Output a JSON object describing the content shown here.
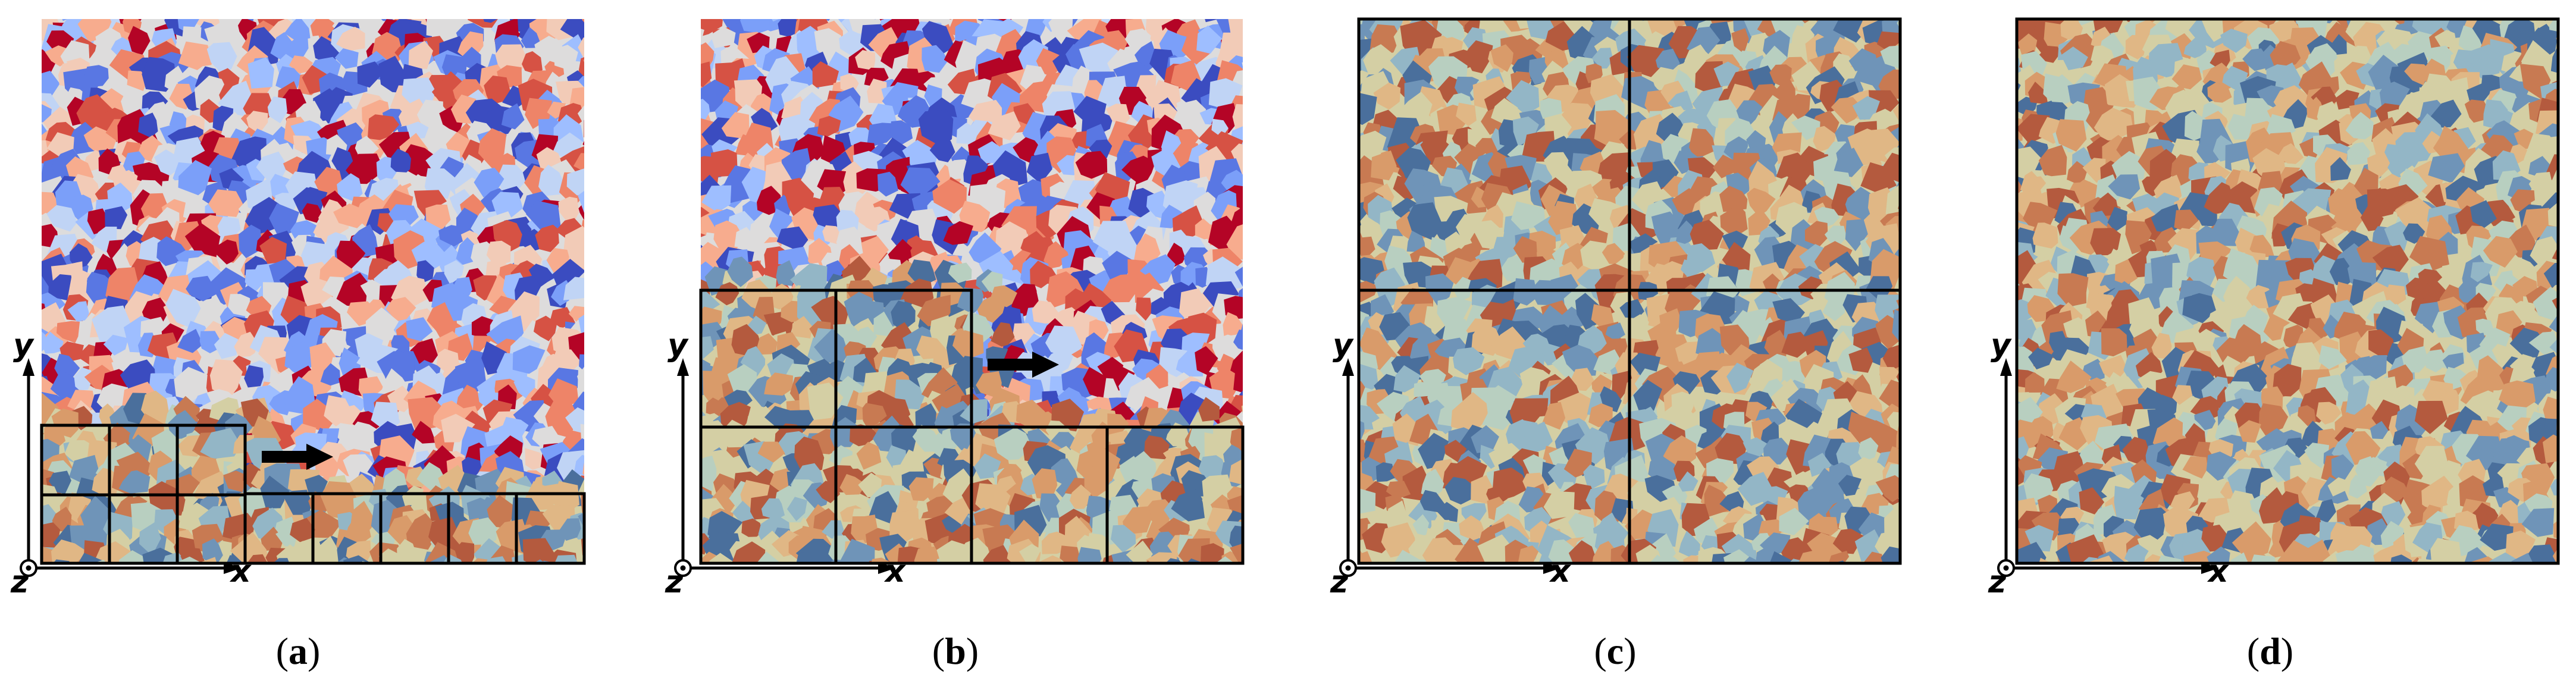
{
  "panels": [
    {
      "caption_open": "(",
      "caption_letter": "a",
      "caption_close": ")",
      "has_arrow": true
    },
    {
      "caption_open": "(",
      "caption_letter": "b",
      "caption_close": ")",
      "has_arrow": true
    },
    {
      "caption_open": "(",
      "caption_letter": "c",
      "caption_close": ")",
      "has_arrow": false
    },
    {
      "caption_open": "(",
      "caption_letter": "d",
      "caption_close": ")",
      "has_arrow": false
    }
  ],
  "axes": {
    "x_label": "x",
    "y_label": "y",
    "z_label": "z"
  },
  "colors": {
    "scheme_full": [
      "#3b4cc0",
      "#5977e3",
      "#7b9ff9",
      "#9ebeff",
      "#c0d4f5",
      "#dddcdc",
      "#f2cbb7",
      "#f7ac8e",
      "#ee8468",
      "#d65244",
      "#b40426"
    ],
    "scheme_muted": [
      "#4a6f9c",
      "#6f94b8",
      "#93b6c6",
      "#b8cfc0",
      "#d4cfa4",
      "#e0b785",
      "#d99b6a",
      "#c87a52",
      "#b45a3e"
    ],
    "grid_lines": "#000000",
    "arrow": "#000000"
  }
}
